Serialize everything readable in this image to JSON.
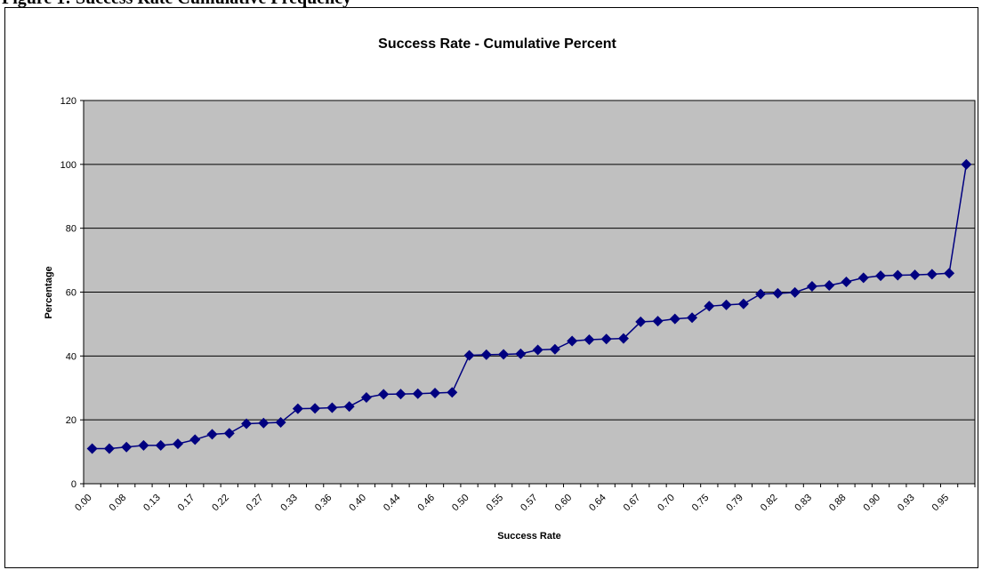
{
  "page": {
    "heading_fragment": "Figure 1: Success Rate Cumulative Frequency"
  },
  "colors": {
    "plot_background": "#c0c0c0",
    "series": "#000080",
    "gridline": "#000000"
  },
  "chart_data": {
    "type": "line",
    "title": "Success Rate - Cumulative Percent",
    "xlabel": "Success Rate",
    "ylabel": "Percentage",
    "ylim": [
      0,
      120
    ],
    "yticks": [
      0,
      20,
      40,
      60,
      80,
      100,
      120
    ],
    "grid": true,
    "legend": "none",
    "marker": "diamond",
    "x_tick_labels": [
      "0.00",
      "0.08",
      "0.13",
      "0.17",
      "0.22",
      "0.27",
      "0.33",
      "0.36",
      "0.40",
      "0.44",
      "0.46",
      "0.50",
      "0.55",
      "0.57",
      "0.60",
      "0.64",
      "0.67",
      "0.70",
      "0.75",
      "0.79",
      "0.82",
      "0.83",
      "0.88",
      "0.90",
      "0.93",
      "0.95"
    ],
    "series": [
      {
        "values": [
          11,
          11,
          11.5,
          12,
          12,
          12.5,
          13.8,
          15.5,
          15.8,
          18.8,
          19,
          19.2,
          23.5,
          23.6,
          23.8,
          24.2,
          27,
          28,
          28.1,
          28.2,
          28.4,
          28.6,
          40.2,
          40.4,
          40.5,
          40.7,
          41.9,
          42.1,
          44.7,
          45.1,
          45.3,
          45.5,
          50.7,
          50.9,
          51.6,
          52,
          55.6,
          56,
          56.3,
          59.4,
          59.6,
          59.9,
          61.8,
          62.1,
          63.2,
          64.5,
          65.1,
          65.3,
          65.4,
          65.6,
          65.9,
          100
        ]
      }
    ]
  }
}
